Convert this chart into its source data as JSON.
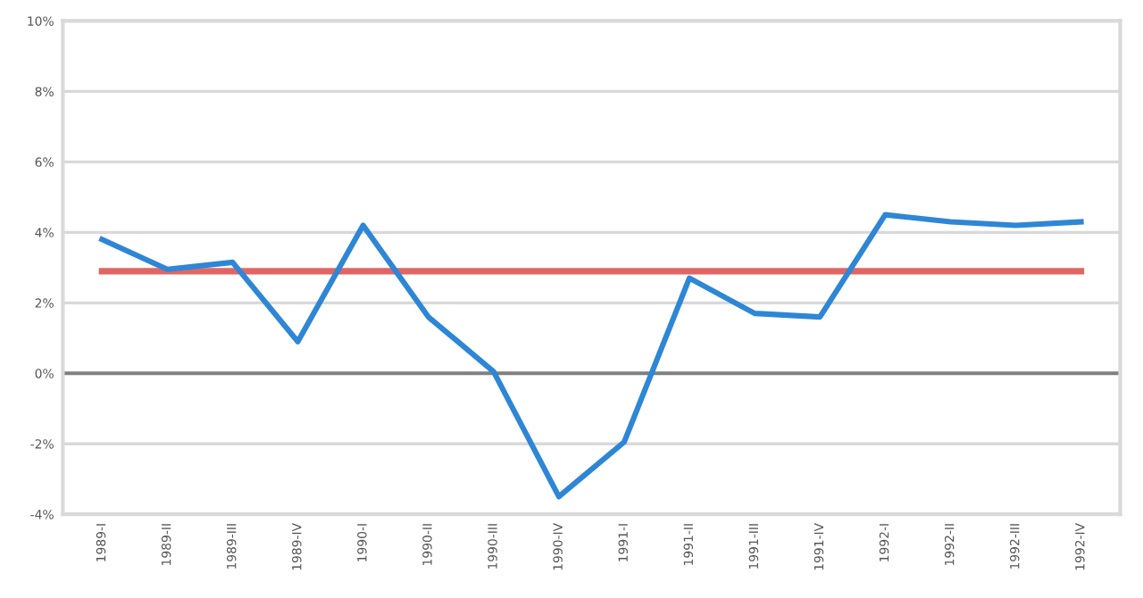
{
  "chart_data": {
    "type": "line",
    "categories": [
      "1989-I",
      "1989-II",
      "1989-III",
      "1989-IV",
      "1990-I",
      "1990-II",
      "1990-III",
      "1990-IV",
      "1991-I",
      "1991-II",
      "1991-III",
      "1991-IV",
      "1992-I",
      "1992-II",
      "1992-III",
      "1992-IV"
    ],
    "series": [
      {
        "color": "#2e86d6",
        "values": [
          3.8,
          2.95,
          3.15,
          0.9,
          4.2,
          1.6,
          0.05,
          -3.5,
          -1.95,
          2.7,
          1.7,
          1.6,
          4.5,
          4.3,
          4.2,
          4.3
        ]
      },
      {
        "color": "#e06666",
        "values": [
          2.9,
          2.9,
          2.9,
          2.9,
          2.9,
          2.9,
          2.9,
          2.9,
          2.9,
          2.9,
          2.9,
          2.9,
          2.9,
          2.9,
          2.9,
          2.9
        ]
      }
    ],
    "ref_lines": [
      {
        "axis": "y",
        "value": 0,
        "color": "#808080"
      }
    ],
    "ylim": [
      -4,
      10
    ],
    "yticks": [
      {
        "value": -4,
        "label": "-4%"
      },
      {
        "value": -2,
        "label": "-2%"
      },
      {
        "value": 0,
        "label": "0%"
      },
      {
        "value": 2,
        "label": "2%"
      },
      {
        "value": 4,
        "label": "4%"
      },
      {
        "value": 6,
        "label": "6%"
      },
      {
        "value": 8,
        "label": "8%"
      },
      {
        "value": 10,
        "label": "10%"
      }
    ],
    "grid": "y",
    "marker": "none",
    "line_style": "solid"
  }
}
